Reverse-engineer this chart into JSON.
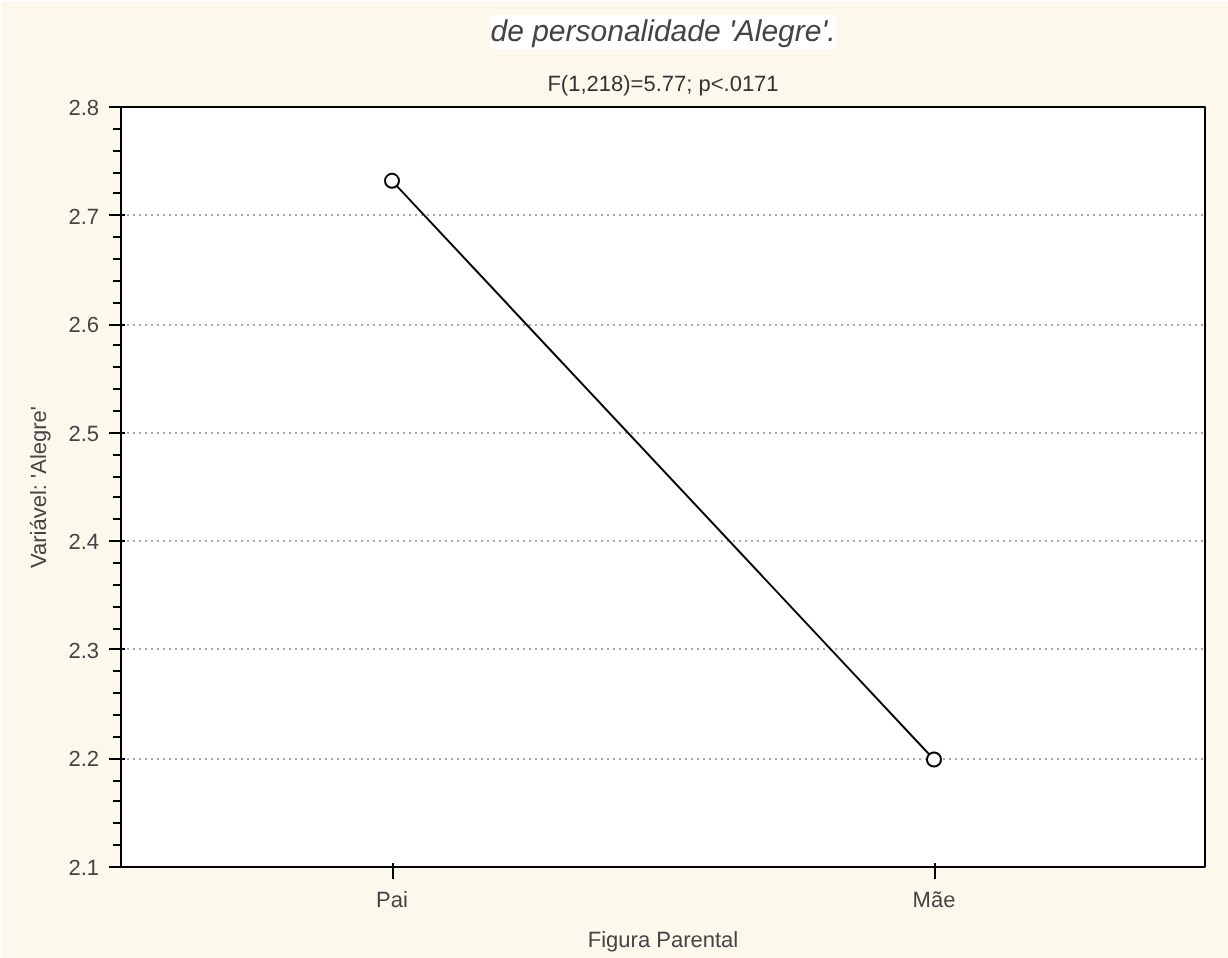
{
  "chart_data": {
    "type": "line",
    "title": "de personalidade 'Alegre'.",
    "subtitle": "F(1,218)=5.77; p<.0171",
    "xlabel": "Figura Parental",
    "ylabel": "Variável: 'Alegre'",
    "categories": [
      "Pai",
      "Mãe"
    ],
    "series": [
      {
        "color": "#000000",
        "values": [
          2.732,
          2.199
        ]
      }
    ],
    "ylim": [
      2.1,
      2.8
    ],
    "yticks": [
      2.1,
      2.2,
      2.3,
      2.4,
      2.5,
      2.6,
      2.7,
      2.8
    ],
    "grid": "y",
    "marker": "circle",
    "line_style": "solid"
  }
}
